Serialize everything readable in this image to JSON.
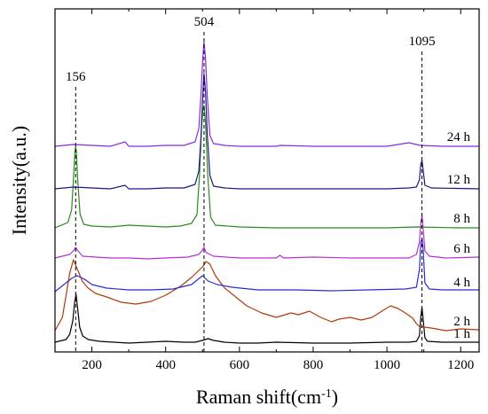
{
  "chart_data": {
    "type": "line",
    "xlabel": "Raman shift(cm",
    "xlabel_sup": "-1",
    "xlabel_end": ")",
    "ylabel": "Intensity(a.u.)",
    "xlim": [
      100,
      1250
    ],
    "x_ticks": [
      200,
      400,
      600,
      800,
      1000,
      1200
    ],
    "x_minor_step": 100,
    "peak_markers": [
      {
        "label": "156",
        "x": 156
      },
      {
        "label": "504",
        "x": 504
      },
      {
        "label": "1095",
        "x": 1095
      }
    ],
    "series": [
      {
        "name": "1 h",
        "color": "#000000",
        "offset": 0,
        "points": [
          [
            100,
            1
          ],
          [
            130,
            4
          ],
          [
            140,
            10
          ],
          [
            148,
            25
          ],
          [
            153,
            45
          ],
          [
            157,
            55
          ],
          [
            161,
            40
          ],
          [
            167,
            18
          ],
          [
            175,
            8
          ],
          [
            190,
            4
          ],
          [
            220,
            2
          ],
          [
            260,
            1
          ],
          [
            300,
            0
          ],
          [
            350,
            1
          ],
          [
            400,
            2
          ],
          [
            450,
            1
          ],
          [
            480,
            1
          ],
          [
            500,
            3
          ],
          [
            515,
            5
          ],
          [
            530,
            3
          ],
          [
            560,
            1
          ],
          [
            600,
            0
          ],
          [
            650,
            0
          ],
          [
            700,
            1
          ],
          [
            800,
            0
          ],
          [
            900,
            0
          ],
          [
            1000,
            1
          ],
          [
            1060,
            1
          ],
          [
            1080,
            2
          ],
          [
            1088,
            8
          ],
          [
            1092,
            30
          ],
          [
            1095,
            40
          ],
          [
            1098,
            28
          ],
          [
            1103,
            6
          ],
          [
            1110,
            2
          ],
          [
            1150,
            1
          ],
          [
            1250,
            1
          ]
        ]
      },
      {
        "name": "2 h",
        "color": "#b03a0a",
        "offset": 14,
        "points": [
          [
            100,
            0
          ],
          [
            120,
            15
          ],
          [
            130,
            40
          ],
          [
            140,
            65
          ],
          [
            150,
            80
          ],
          [
            160,
            70
          ],
          [
            175,
            55
          ],
          [
            190,
            48
          ],
          [
            210,
            42
          ],
          [
            240,
            38
          ],
          [
            280,
            32
          ],
          [
            320,
            30
          ],
          [
            360,
            33
          ],
          [
            400,
            40
          ],
          [
            440,
            50
          ],
          [
            470,
            60
          ],
          [
            490,
            68
          ],
          [
            500,
            72
          ],
          [
            510,
            78
          ],
          [
            520,
            75
          ],
          [
            535,
            62
          ],
          [
            560,
            48
          ],
          [
            590,
            38
          ],
          [
            620,
            28
          ],
          [
            660,
            20
          ],
          [
            700,
            15
          ],
          [
            740,
            20
          ],
          [
            760,
            18
          ],
          [
            790,
            22
          ],
          [
            820,
            15
          ],
          [
            850,
            10
          ],
          [
            870,
            13
          ],
          [
            900,
            15
          ],
          [
            930,
            12
          ],
          [
            960,
            15
          ],
          [
            990,
            23
          ],
          [
            1010,
            28
          ],
          [
            1030,
            25
          ],
          [
            1050,
            20
          ],
          [
            1070,
            14
          ],
          [
            1080,
            8
          ],
          [
            1090,
            4
          ],
          [
            1100,
            4
          ],
          [
            1120,
            3
          ],
          [
            1160,
            0
          ],
          [
            1200,
            2
          ],
          [
            1250,
            1
          ]
        ]
      },
      {
        "name": "4 h",
        "color": "#2b2bd6",
        "offset": 58,
        "points": [
          [
            100,
            0
          ],
          [
            130,
            10
          ],
          [
            145,
            15
          ],
          [
            160,
            18
          ],
          [
            180,
            14
          ],
          [
            200,
            8
          ],
          [
            240,
            4
          ],
          [
            300,
            2
          ],
          [
            360,
            2
          ],
          [
            420,
            3
          ],
          [
            470,
            8
          ],
          [
            500,
            18
          ],
          [
            515,
            12
          ],
          [
            540,
            8
          ],
          [
            580,
            5
          ],
          [
            650,
            2
          ],
          [
            750,
            2
          ],
          [
            850,
            1
          ],
          [
            950,
            2
          ],
          [
            1050,
            3
          ],
          [
            1080,
            5
          ],
          [
            1088,
            25
          ],
          [
            1092,
            55
          ],
          [
            1095,
            60
          ],
          [
            1098,
            50
          ],
          [
            1103,
            10
          ],
          [
            1115,
            3
          ],
          [
            1150,
            2
          ],
          [
            1250,
            2
          ]
        ]
      },
      {
        "name": "6 h",
        "color": "#b430d6",
        "offset": 96,
        "points": [
          [
            100,
            0
          ],
          [
            140,
            4
          ],
          [
            150,
            8
          ],
          [
            156,
            12
          ],
          [
            162,
            8
          ],
          [
            175,
            2
          ],
          [
            210,
            1
          ],
          [
            250,
            0
          ],
          [
            300,
            0
          ],
          [
            350,
            -1
          ],
          [
            400,
            0
          ],
          [
            460,
            1
          ],
          [
            490,
            4
          ],
          [
            498,
            8
          ],
          [
            504,
            12
          ],
          [
            510,
            6
          ],
          [
            530,
            2
          ],
          [
            600,
            0
          ],
          [
            700,
            0
          ],
          [
            710,
            3
          ],
          [
            720,
            0
          ],
          [
            800,
            1
          ],
          [
            900,
            0
          ],
          [
            1000,
            0
          ],
          [
            1060,
            0
          ],
          [
            1080,
            4
          ],
          [
            1088,
            18
          ],
          [
            1092,
            40
          ],
          [
            1095,
            48
          ],
          [
            1098,
            35
          ],
          [
            1103,
            8
          ],
          [
            1115,
            2
          ],
          [
            1160,
            0
          ],
          [
            1250,
            1
          ]
        ]
      },
      {
        "name": "8 h",
        "color": "#2a8a20",
        "offset": 130,
        "points": [
          [
            100,
            0
          ],
          [
            135,
            6
          ],
          [
            145,
            20
          ],
          [
            150,
            55
          ],
          [
            154,
            85
          ],
          [
            156,
            92
          ],
          [
            158,
            85
          ],
          [
            162,
            50
          ],
          [
            168,
            15
          ],
          [
            178,
            4
          ],
          [
            200,
            2
          ],
          [
            250,
            1
          ],
          [
            300,
            3
          ],
          [
            350,
            2
          ],
          [
            400,
            1
          ],
          [
            440,
            2
          ],
          [
            470,
            5
          ],
          [
            485,
            15
          ],
          [
            492,
            60
          ],
          [
            497,
            110
          ],
          [
            500,
            130
          ],
          [
            504,
            138
          ],
          [
            508,
            120
          ],
          [
            514,
            60
          ],
          [
            522,
            12
          ],
          [
            535,
            3
          ],
          [
            600,
            1
          ],
          [
            700,
            0
          ],
          [
            800,
            0
          ],
          [
            900,
            0
          ],
          [
            1000,
            0
          ],
          [
            1080,
            1
          ],
          [
            1200,
            0
          ],
          [
            1250,
            0
          ]
        ]
      },
      {
        "name": "12 h",
        "color": "#1a1a80",
        "offset": 174,
        "points": [
          [
            100,
            0
          ],
          [
            150,
            2
          ],
          [
            200,
            1
          ],
          [
            250,
            0
          ],
          [
            290,
            4
          ],
          [
            300,
            0
          ],
          [
            350,
            0
          ],
          [
            400,
            1
          ],
          [
            450,
            1
          ],
          [
            480,
            5
          ],
          [
            490,
            20
          ],
          [
            496,
            60
          ],
          [
            500,
            100
          ],
          [
            504,
            130
          ],
          [
            508,
            110
          ],
          [
            513,
            60
          ],
          [
            520,
            15
          ],
          [
            530,
            3
          ],
          [
            560,
            1
          ],
          [
            600,
            0
          ],
          [
            700,
            0
          ],
          [
            800,
            0
          ],
          [
            900,
            0
          ],
          [
            1000,
            0
          ],
          [
            1060,
            1
          ],
          [
            1080,
            2
          ],
          [
            1088,
            10
          ],
          [
            1092,
            28
          ],
          [
            1095,
            32
          ],
          [
            1098,
            22
          ],
          [
            1103,
            4
          ],
          [
            1120,
            1
          ],
          [
            1250,
            0
          ]
        ]
      },
      {
        "name": "24 h",
        "color": "#8a2be2",
        "offset": 222,
        "points": [
          [
            100,
            0
          ],
          [
            150,
            2
          ],
          [
            200,
            1
          ],
          [
            250,
            0
          ],
          [
            290,
            5
          ],
          [
            300,
            0
          ],
          [
            350,
            0
          ],
          [
            400,
            1
          ],
          [
            450,
            1
          ],
          [
            480,
            5
          ],
          [
            490,
            20
          ],
          [
            496,
            60
          ],
          [
            500,
            95
          ],
          [
            504,
            118
          ],
          [
            508,
            100
          ],
          [
            513,
            55
          ],
          [
            520,
            12
          ],
          [
            530,
            3
          ],
          [
            560,
            1
          ],
          [
            600,
            0
          ],
          [
            700,
            0
          ],
          [
            710,
            1
          ],
          [
            800,
            0
          ],
          [
            900,
            0
          ],
          [
            1000,
            0
          ],
          [
            1060,
            4
          ],
          [
            1080,
            2
          ],
          [
            1090,
            1
          ],
          [
            1150,
            0
          ],
          [
            1250,
            0
          ]
        ]
      }
    ]
  }
}
